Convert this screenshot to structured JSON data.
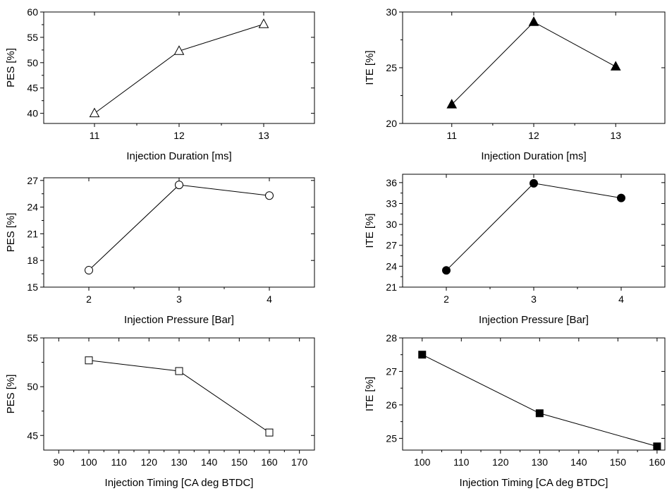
{
  "chart_data": [
    {
      "type": "line",
      "xlabel": "Injection Duration [ms]",
      "ylabel": "PES [%]",
      "xlim": [
        10.4,
        13.6
      ],
      "ylim": [
        38,
        60
      ],
      "xticks": [
        11,
        12,
        13
      ],
      "yticks": [
        40,
        45,
        50,
        55,
        60
      ],
      "marker": "triangle-open",
      "series": [
        {
          "x": [
            11,
            12,
            13
          ],
          "y": [
            40,
            52.3,
            57.6
          ]
        }
      ]
    },
    {
      "type": "line",
      "xlabel": "Injection Duration [ms]",
      "ylabel": "ITE [%]",
      "xlim": [
        10.4,
        13.6
      ],
      "ylim": [
        20,
        30
      ],
      "xticks": [
        11,
        12,
        13
      ],
      "yticks": [
        20,
        25,
        30
      ],
      "marker": "triangle-filled",
      "series": [
        {
          "x": [
            11,
            12,
            13
          ],
          "y": [
            21.7,
            29.1,
            25.1
          ]
        }
      ]
    },
    {
      "type": "line",
      "xlabel": "Injection Pressure [Bar]",
      "ylabel": "PES [%]",
      "xlim": [
        1.5,
        4.5
      ],
      "ylim": [
        15,
        27.3
      ],
      "xticks": [
        2,
        3,
        4
      ],
      "yticks": [
        15,
        18,
        21,
        24,
        27
      ],
      "marker": "circle-open",
      "series": [
        {
          "x": [
            2,
            3,
            4
          ],
          "y": [
            16.9,
            26.5,
            25.3
          ]
        }
      ]
    },
    {
      "type": "line",
      "xlabel": "Injection Pressure [Bar]",
      "ylabel": "ITE [%]",
      "xlim": [
        1.5,
        4.5
      ],
      "ylim": [
        21,
        37.2
      ],
      "xticks": [
        2,
        3,
        4
      ],
      "yticks": [
        21,
        24,
        27,
        30,
        33,
        36
      ],
      "marker": "circle-filled",
      "series": [
        {
          "x": [
            2,
            3,
            4
          ],
          "y": [
            23.4,
            35.9,
            33.8
          ]
        }
      ]
    },
    {
      "type": "line",
      "xlabel": "Injection Timing [CA deg BTDC]",
      "ylabel": "PES [%]",
      "xlim": [
        85,
        175
      ],
      "ylim": [
        43.5,
        55
      ],
      "xticks": [
        90,
        100,
        110,
        120,
        130,
        140,
        150,
        160,
        170
      ],
      "yticks": [
        45,
        50,
        55
      ],
      "marker": "square-open",
      "series": [
        {
          "x": [
            100,
            130,
            160
          ],
          "y": [
            52.7,
            51.6,
            45.3
          ]
        }
      ]
    },
    {
      "type": "line",
      "xlabel": "Injection Timing [CA deg BTDC]",
      "ylabel": "ITE [%]",
      "xlim": [
        95,
        162
      ],
      "ylim": [
        24.65,
        28
      ],
      "xticks": [
        100,
        110,
        120,
        130,
        140,
        150,
        160
      ],
      "yticks": [
        25,
        26,
        27,
        28
      ],
      "marker": "square-filled",
      "series": [
        {
          "x": [
            100,
            130,
            160
          ],
          "y": [
            27.5,
            25.75,
            24.76
          ]
        }
      ]
    }
  ]
}
